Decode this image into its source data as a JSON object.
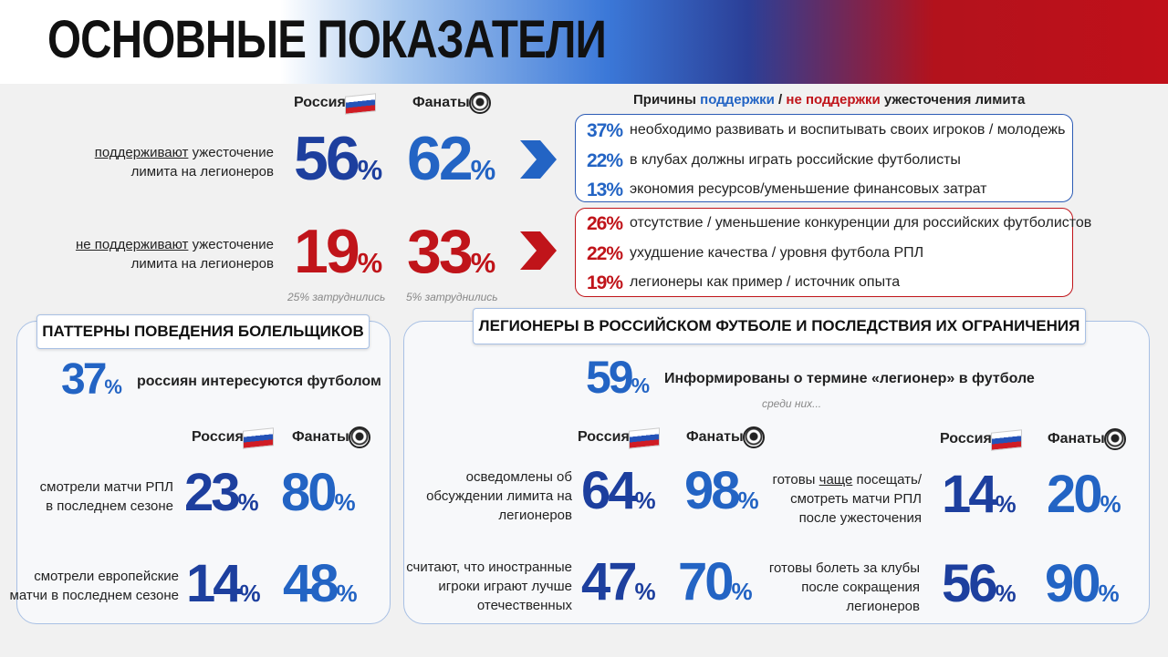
{
  "header": {
    "title": "ОСНОВНЫЕ ПОКАЗАТЕЛИ"
  },
  "unit": "%",
  "top": {
    "col_labels": [
      "Россия",
      "Фанаты"
    ],
    "reasons_title": {
      "before": "Причины ",
      "support": "поддержки",
      "sep": " / ",
      "not_support": "не поддержки",
      "after": " ужесточения лимита"
    },
    "rows": [
      {
        "label": [
          {
            "text": "поддерживают",
            "underline": true
          },
          {
            "text": " ужесточение\nлимита на легионеров"
          }
        ],
        "values": [
          56,
          62
        ],
        "reasons": [
          {
            "value": 37,
            "text": "необходимо развивать и воспитывать своих игроков / молодежь"
          },
          {
            "value": 22,
            "text": "в клубах должны играть российские футболисты"
          },
          {
            "value": 13,
            "text": "экономия ресурсов/уменьшение финансовых затрат"
          }
        ]
      },
      {
        "label": [
          {
            "text": "не поддерживают",
            "underline": true
          },
          {
            "text": " ужесточение\nлимита на легионеров"
          }
        ],
        "values": [
          19,
          33
        ],
        "notes": [
          "25% затруднились",
          "5% затруднились"
        ],
        "reasons": [
          {
            "value": 26,
            "text": "отсутствие / уменьшение конкуренции для российских футболистов"
          },
          {
            "value": 22,
            "text": "ухудшение качества / уровня футбола РПЛ"
          },
          {
            "value": 19,
            "text": "легионеры как пример / источник опыта"
          }
        ]
      }
    ]
  },
  "fans": {
    "title": "ПАТТЕРНЫ ПОВЕДЕНИЯ БОЛЕЛЬЩИКОВ",
    "headline": {
      "value": 37,
      "text": "россиян интересуются футболом"
    },
    "col_labels": [
      "Россия",
      "Фанаты"
    ],
    "rows": [
      {
        "label": "смотрели матчи РПЛ\nв последнем сезоне",
        "values": [
          23,
          80
        ]
      },
      {
        "label": "смотрели европейские\nматчи в последнем сезоне",
        "values": [
          14,
          48
        ]
      }
    ]
  },
  "legion": {
    "title": "ЛЕГИОНЕРЫ В РОССИЙСКОМ ФУТБОЛЕ И ПОСЛЕДСТВИЯ ИХ ОГРАНИЧЕНИЯ",
    "headline": {
      "value": 59,
      "text": "Информированы о термине «легионер» в футболе"
    },
    "note": "среди них...",
    "left": {
      "col_labels": [
        "Россия",
        "Фанаты"
      ],
      "rows": [
        {
          "label": "осведомлены об\nобсуждении лимита на\nлегионеров",
          "values": [
            64,
            98
          ]
        },
        {
          "label": "считают, что иностранные\nигроки играют лучше\nотечественных",
          "values": [
            47,
            70
          ]
        }
      ]
    },
    "right": {
      "col_labels": [
        "Россия",
        "Фанаты"
      ],
      "rows": [
        {
          "label": [
            {
              "text": "готовы "
            },
            {
              "text": "чаще",
              "underline": true
            },
            {
              "text": " посещать/\nсмотреть матчи РПЛ\nпосле ужесточения"
            }
          ],
          "values": [
            14,
            20
          ]
        },
        {
          "label": "готовы болеть за клубы\nпосле сокращения\nлегионеров",
          "values": [
            56,
            90
          ]
        }
      ]
    }
  }
}
